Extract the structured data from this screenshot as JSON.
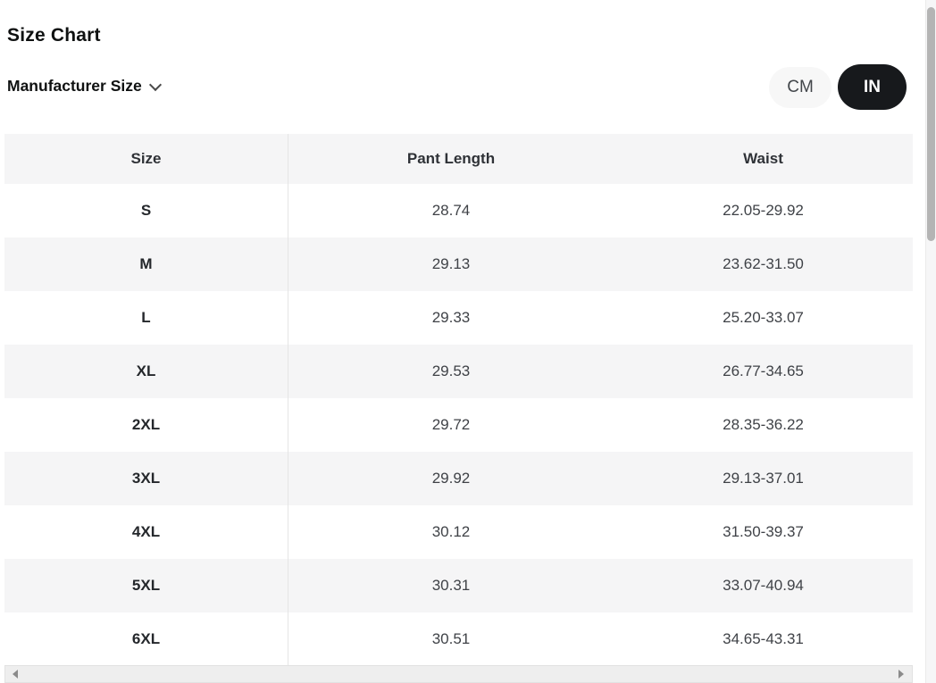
{
  "page": {
    "title": "Size Chart"
  },
  "manufacturer_size": {
    "label": "Manufacturer Size",
    "icon": "chevron-down-icon"
  },
  "unit_toggle": {
    "cm_label": "CM",
    "in_label": "IN",
    "selected": "IN",
    "selected_bg": "#17191c",
    "selected_text": "#ffffff",
    "unselected_bg": "#f7f7f7",
    "unselected_text": "#43474b"
  },
  "table": {
    "columns": [
      "Size",
      "Pant Length",
      "Waist"
    ],
    "rows": [
      {
        "size": "S",
        "pant_length": "28.74",
        "waist": "22.05-29.92"
      },
      {
        "size": "M",
        "pant_length": "29.13",
        "waist": "23.62-31.50"
      },
      {
        "size": "L",
        "pant_length": "29.33",
        "waist": "25.20-33.07"
      },
      {
        "size": "XL",
        "pant_length": "29.53",
        "waist": "26.77-34.65"
      },
      {
        "size": "2XL",
        "pant_length": "29.72",
        "waist": "28.35-36.22"
      },
      {
        "size": "3XL",
        "pant_length": "29.92",
        "waist": "29.13-37.01"
      },
      {
        "size": "4XL",
        "pant_length": "30.12",
        "waist": "31.50-39.37"
      },
      {
        "size": "5XL",
        "pant_length": "30.31",
        "waist": "33.07-40.94"
      },
      {
        "size": "6XL",
        "pant_length": "30.51",
        "waist": "34.65-43.31"
      }
    ]
  },
  "colors": {
    "header_row_bg": "#f5f5f6",
    "alt_row_bg": "#f5f5f6",
    "row_bg": "#ffffff",
    "column_divider": "#e5e5e5",
    "title_text": "#0f1111",
    "value_text": "#3f4247",
    "scrollbar_thumb": "#b4b4b4",
    "scrollbar_track": "#f6f6f7"
  },
  "scrollbars": {
    "vertical": "vertical-scrollbar",
    "horizontal": "horizontal-scrollbar"
  }
}
